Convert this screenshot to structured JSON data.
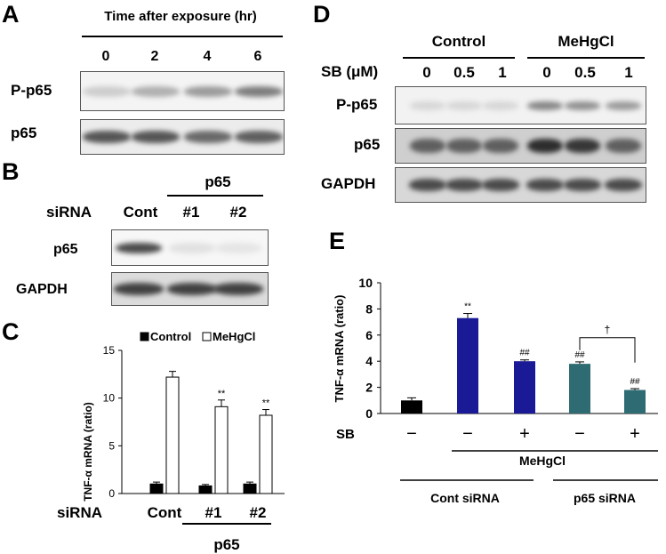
{
  "panel_A": {
    "label": "A",
    "header": "Time after exposure (hr)",
    "lanes": [
      "0",
      "2",
      "4",
      "6"
    ],
    "rows": [
      {
        "label": "P-p65",
        "intensity": [
          0.15,
          0.3,
          0.4,
          0.55
        ]
      },
      {
        "label": "p65",
        "intensity": [
          0.75,
          0.75,
          0.65,
          0.7
        ]
      }
    ]
  },
  "panel_B": {
    "label": "B",
    "group_label": "p65",
    "row_label": "siRNA",
    "lanes": [
      "Cont",
      "#1",
      "#2"
    ],
    "rows": [
      {
        "label": "p65",
        "intensity": [
          0.8,
          0.05,
          0.03
        ]
      },
      {
        "label": "GAPDH",
        "intensity": [
          0.85,
          0.85,
          0.85
        ]
      }
    ]
  },
  "panel_C": {
    "label": "C",
    "chart_data": {
      "type": "bar",
      "ylabel": "TNF-α mRNA (ratio)",
      "ylim": [
        0,
        15
      ],
      "yticks": [
        "0",
        "5",
        "10",
        "15"
      ],
      "categories": [
        "Cont",
        "#1",
        "#2"
      ],
      "series": [
        {
          "name": "Control",
          "color": "#000000",
          "values": [
            1.0,
            0.8,
            1.0
          ],
          "errors": [
            0.2,
            0.15,
            0.2
          ]
        },
        {
          "name": "MeHgCl",
          "color": "#ffffff",
          "values": [
            12.2,
            9.1,
            8.2
          ],
          "errors": [
            0.6,
            0.7,
            0.6
          ]
        }
      ],
      "annotations": [
        "",
        "**",
        "**"
      ],
      "legend": "top-right",
      "row_label": "siRNA",
      "group_label": "p65"
    }
  },
  "panel_D": {
    "label": "D",
    "groups": [
      "Control",
      "MeHgCl"
    ],
    "row_label": "SB (μM)",
    "lanes": [
      "0",
      "0.5",
      "1",
      "0",
      "0.5",
      "1"
    ],
    "rows": [
      {
        "label": "P-p65",
        "intensity": [
          0.1,
          0.1,
          0.1,
          0.5,
          0.45,
          0.4
        ]
      },
      {
        "label": "p65",
        "intensity": [
          0.7,
          0.7,
          0.7,
          0.95,
          0.9,
          0.7
        ]
      },
      {
        "label": "GAPDH",
        "intensity": [
          0.8,
          0.8,
          0.8,
          0.8,
          0.8,
          0.8
        ]
      }
    ]
  },
  "panel_E": {
    "label": "E",
    "chart_data": {
      "type": "bar",
      "ylabel": "TNF-α mRNA (ratio)",
      "ylim": [
        0,
        10
      ],
      "yticks": [
        "0",
        "2",
        "4",
        "6",
        "8",
        "10"
      ],
      "values": [
        1.0,
        7.3,
        4.0,
        3.8,
        1.8
      ],
      "errors": [
        0.2,
        0.35,
        0.1,
        0.15,
        0.1
      ],
      "colors": [
        "#000000",
        "#1a1a96",
        "#1a1a96",
        "#2e6b73",
        "#2e6b73"
      ],
      "annotations": [
        "",
        "**",
        "##",
        "##",
        "##"
      ],
      "sb_row_label": "SB",
      "sb": [
        "−",
        "−",
        "+",
        "−",
        "+"
      ],
      "treatment_label": "MeHgCl",
      "groups": [
        "Cont siRNA",
        "p65 siRNA"
      ],
      "bracket_symbol": "†"
    }
  }
}
